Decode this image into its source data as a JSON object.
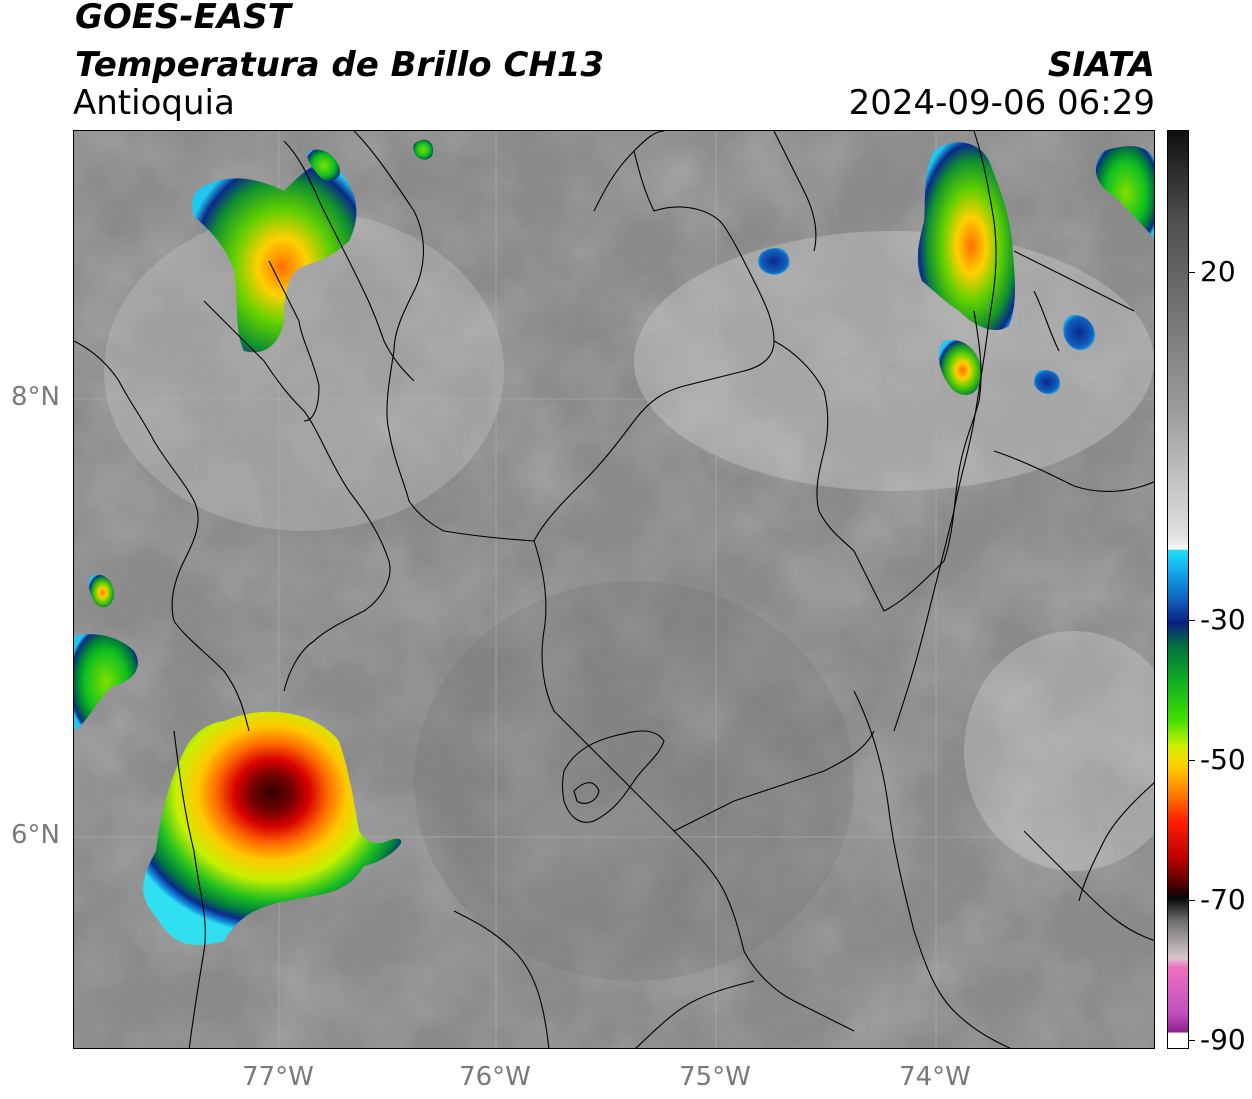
{
  "header": {
    "satellite": "GOES-EAST",
    "product": "Temperatura de Brillo CH13",
    "region": "Antioquia",
    "source": "SIATA",
    "timestamp": "2024-09-06 06:29"
  },
  "axes": {
    "lat_labels": [
      "8°N",
      "6°N"
    ],
    "lon_labels": [
      "77°W",
      "76°W",
      "75°W",
      "74°W"
    ]
  },
  "colorbar": {
    "labels": [
      "20",
      "-30",
      "-50",
      "-70",
      "-90"
    ],
    "colors": {
      "warm_gray": "#8a8a8a",
      "cyan": "#00d8f0",
      "blue": "#0a2a8a",
      "green": "#10c020",
      "yellow": "#f0f000",
      "orange": "#ff8000",
      "red": "#e00000",
      "dark_red": "#5a0000",
      "black": "#101010",
      "magenta": "#c040c0"
    }
  }
}
